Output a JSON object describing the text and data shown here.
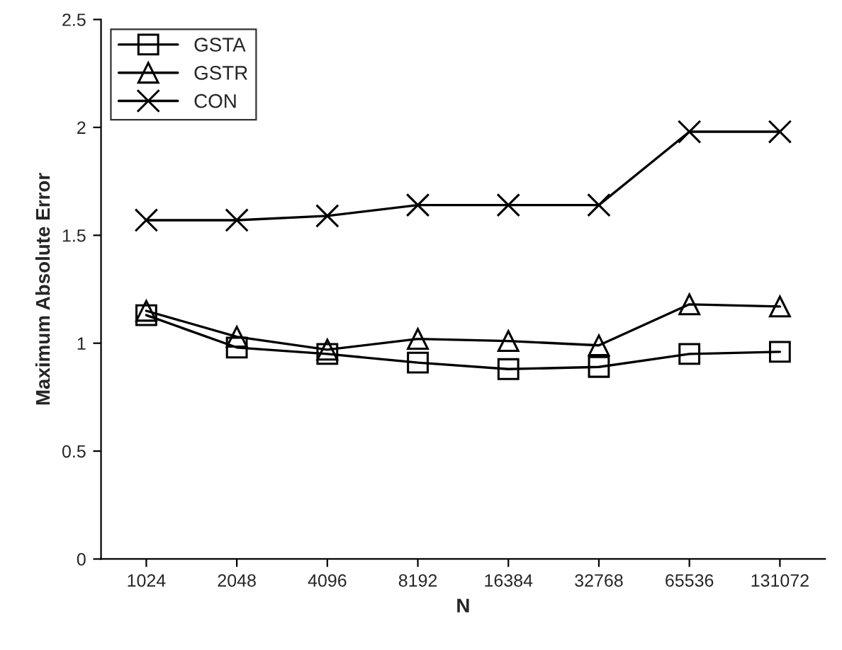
{
  "chart_data": {
    "type": "line",
    "xlabel": "N",
    "ylabel": "Maximum Absolute Error",
    "categories": [
      "1024",
      "2048",
      "4096",
      "8192",
      "16384",
      "32768",
      "65536",
      "131072"
    ],
    "series": [
      {
        "name": "GSTA",
        "color": "#000000",
        "marker": "square",
        "values": [
          1.13,
          0.98,
          0.95,
          0.91,
          0.88,
          0.89,
          0.95,
          0.96
        ]
      },
      {
        "name": "GSTR",
        "color": "#000000",
        "marker": "triangle",
        "values": [
          1.15,
          1.03,
          0.97,
          1.02,
          1.01,
          0.99,
          1.18,
          1.17
        ]
      },
      {
        "name": "CON",
        "color": "#000000",
        "marker": "cross",
        "values": [
          1.57,
          1.57,
          1.59,
          1.64,
          1.64,
          1.64,
          1.98,
          1.98
        ]
      }
    ],
    "ylim": [
      0,
      2.5
    ],
    "yticks": [
      0,
      0.5,
      1,
      1.5,
      2,
      2.5
    ],
    "grid": false,
    "legend": "top left",
    "line_style": "solid"
  }
}
